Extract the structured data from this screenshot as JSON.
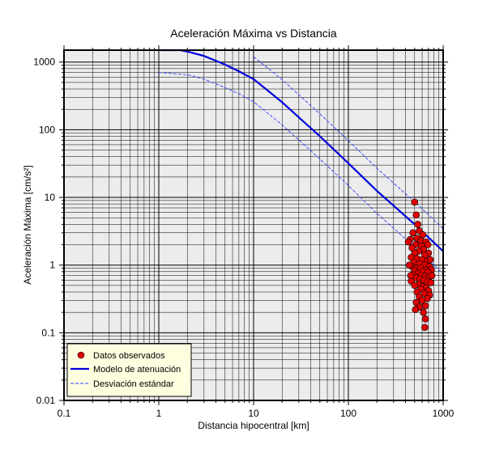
{
  "chart_data": {
    "type": "scatter",
    "title": "Aceleración Máxima vs Distancia",
    "xlabel": "Distancia hipocentral [km]",
    "ylabel": "Aceleración Máxima [cm/s²]",
    "xscale": "log",
    "yscale": "log",
    "xlim": [
      0.1,
      1000
    ],
    "ylim": [
      0.01,
      1500
    ],
    "grid": true,
    "x_ticks": [
      "0.1",
      "1",
      "10",
      "100",
      "1000"
    ],
    "y_ticks": [
      "0.01",
      "0.1",
      "1",
      "10",
      "100",
      "1000"
    ],
    "legend": {
      "position": "bottom-left",
      "entries": [
        "Datos observados",
        "Modelo de atenuación",
        "Desviación estándar"
      ]
    },
    "colors": {
      "points": "#e00000",
      "model": "#0000e0",
      "deviation": "#3040ff",
      "plot_background": "#ececec",
      "legend_background": "#ffffe0"
    },
    "series": [
      {
        "name": "Datos observados",
        "kind": "scatter",
        "points": [
          [
            500,
            8.5
          ],
          [
            520,
            5.5
          ],
          [
            540,
            4.0
          ],
          [
            560,
            3.2
          ],
          [
            480,
            3.0
          ],
          [
            610,
            2.8
          ],
          [
            450,
            2.4
          ],
          [
            530,
            2.5
          ],
          [
            580,
            2.3
          ],
          [
            660,
            2.2
          ],
          [
            510,
            2.0
          ],
          [
            590,
            1.9
          ],
          [
            470,
            1.8
          ],
          [
            620,
            1.7
          ],
          [
            550,
            1.6
          ],
          [
            700,
            1.5
          ],
          [
            500,
            1.5
          ],
          [
            640,
            1.4
          ],
          [
            460,
            1.3
          ],
          [
            530,
            1.25
          ],
          [
            600,
            1.2
          ],
          [
            680,
            1.15
          ],
          [
            490,
            1.1
          ],
          [
            560,
            1.05
          ],
          [
            640,
            1.0
          ],
          [
            720,
            0.95
          ],
          [
            470,
            0.95
          ],
          [
            520,
            0.9
          ],
          [
            580,
            0.9
          ],
          [
            660,
            0.85
          ],
          [
            750,
            0.85
          ],
          [
            500,
            0.82
          ],
          [
            610,
            0.8
          ],
          [
            690,
            0.78
          ],
          [
            540,
            0.75
          ],
          [
            480,
            0.72
          ],
          [
            590,
            0.7
          ],
          [
            650,
            0.68
          ],
          [
            710,
            0.66
          ],
          [
            520,
            0.65
          ],
          [
            570,
            0.62
          ],
          [
            630,
            0.6
          ],
          [
            460,
            0.58
          ],
          [
            680,
            0.56
          ],
          [
            740,
            0.55
          ],
          [
            550,
            0.52
          ],
          [
            500,
            0.5
          ],
          [
            610,
            0.48
          ],
          [
            660,
            0.46
          ],
          [
            580,
            0.44
          ],
          [
            700,
            0.42
          ],
          [
            530,
            0.4
          ],
          [
            640,
            0.38
          ],
          [
            720,
            0.36
          ],
          [
            560,
            0.34
          ],
          [
            680,
            0.32
          ],
          [
            600,
            0.3
          ],
          [
            520,
            0.28
          ],
          [
            650,
            0.25
          ],
          [
            560,
            0.24
          ],
          [
            510,
            0.22
          ],
          [
            620,
            0.2
          ],
          [
            650,
            0.16
          ],
          [
            640,
            0.12
          ],
          [
            430,
            2.2
          ],
          [
            440,
            1.0
          ],
          [
            455,
            0.7
          ],
          [
            690,
            2.0
          ],
          [
            730,
            1.2
          ],
          [
            760,
            0.7
          ]
        ]
      },
      {
        "name": "Modelo de atenuación",
        "kind": "line",
        "x": [
          1,
          1.7,
          2,
          3,
          5,
          7,
          10,
          20,
          50,
          100,
          200,
          500,
          1000
        ],
        "y": [
          1500,
          1500,
          1430,
          1230,
          920,
          730,
          560,
          255,
          80,
          32,
          12.5,
          4.0,
          1.6
        ]
      },
      {
        "name": "Desviación estándar",
        "kind": "line",
        "x": [
          1,
          2,
          3,
          5,
          7,
          10,
          20,
          50,
          100,
          200,
          500,
          1000
        ],
        "y": [
          700,
          650,
          560,
          420,
          340,
          260,
          118,
          37,
          15,
          5.8,
          1.85,
          0.74
        ]
      },
      {
        "name": "Desviación estándar",
        "kind": "line",
        "x": [
          10,
          20,
          50,
          100,
          200,
          500,
          1000
        ],
        "y": [
          1200,
          550,
          172,
          69,
          27,
          8.6,
          3.45
        ]
      }
    ]
  }
}
